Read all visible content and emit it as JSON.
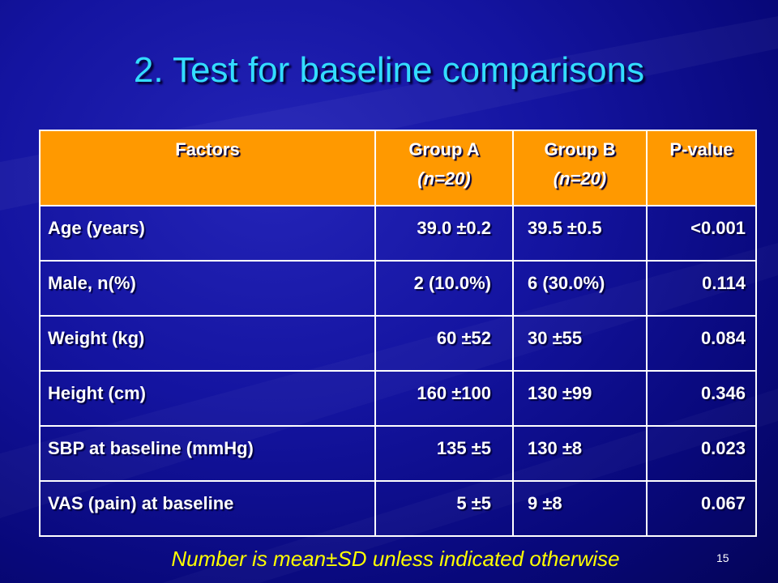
{
  "title": "2. Test for baseline comparisons",
  "table": {
    "header": [
      {
        "label": "Factors"
      },
      {
        "label": "Group A",
        "note": "(n=20)"
      },
      {
        "label": "Group B",
        "note": "(n=20)"
      },
      {
        "label": "P-value"
      }
    ],
    "rows": [
      [
        "Age (years)",
        "39.0 ±0.2",
        "39.5 ±0.5",
        "<0.001"
      ],
      [
        "Male, n(%)",
        "2 (10.0%)",
        "6 (30.0%)",
        "0.114"
      ],
      [
        "Weight (kg)",
        "60 ±52",
        "30 ±55",
        "0.084"
      ],
      [
        "Height (cm)",
        "160 ±100",
        "130 ±99",
        "0.346"
      ],
      [
        "SBP at baseline (mmHg)",
        "135 ±5",
        "130 ±8",
        "0.023"
      ],
      [
        "VAS (pain) at baseline",
        "5 ±5",
        "9 ±8",
        "0.067"
      ]
    ]
  },
  "footnote": "Number is mean±SD unless indicated otherwise",
  "page_number": "15"
}
